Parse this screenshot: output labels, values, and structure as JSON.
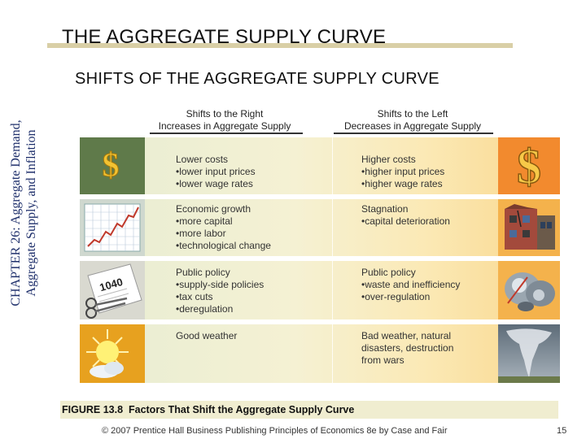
{
  "sidebar": {
    "line1": "CHAPTER 26: Aggregate Demand,",
    "line2": "Aggregate Supply, and Inflation"
  },
  "title": "THE AGGREGATE SUPPLY CURVE",
  "subtitle": "SHIFTS OF THE AGGREGATE SUPPLY CURVE",
  "figure": {
    "left_header": [
      "Shifts to the Right",
      "Increases in Aggregate Supply"
    ],
    "right_header": [
      "Shifts to the Left",
      "Decreases in Aggregate Supply"
    ],
    "rows": [
      {
        "left": {
          "head": "Lower costs",
          "items": [
            "lower input prices",
            "lower wage rates"
          ]
        },
        "right": {
          "head": "Higher costs",
          "items": [
            "higher input prices",
            "higher wage rates"
          ]
        },
        "left_icon": "dollar-sign-icon",
        "right_icon": "dollar-sign-icon"
      },
      {
        "left": {
          "head": "Economic growth",
          "items": [
            "more capital",
            "more labor",
            "technological change"
          ]
        },
        "right": {
          "head": "Stagnation",
          "items": [
            "capital deterioration"
          ]
        },
        "left_icon": "growth-chart-icon",
        "right_icon": "broken-building-icon"
      },
      {
        "left": {
          "head": "Public policy",
          "items": [
            "supply-side policies",
            "tax cuts",
            "deregulation"
          ]
        },
        "right": {
          "head": "Public policy",
          "items": [
            "waste and inefficiency",
            "over-regulation"
          ]
        },
        "left_icon": "tax-form-scissors-icon",
        "right_icon": "red-tape-icon"
      },
      {
        "left": {
          "head": "Good weather",
          "items": []
        },
        "right": {
          "head": "Bad weather, natural disasters, destruction from wars",
          "items": []
        },
        "left_icon": "sun-cloud-icon",
        "right_icon": "tornado-icon"
      }
    ],
    "caption_label": "FIGURE 13.8",
    "caption_text": "Factors That Shift the Aggregate Supply Curve"
  },
  "footer": "© 2007 Prentice Hall Business Publishing   Principles of Economics 8e by Case and Fair",
  "page_number": "15",
  "colors": {
    "sidebar_text": "#1e2f6b",
    "title_bar": "#d9cfa6",
    "caption_bar": "#f0edd0"
  }
}
